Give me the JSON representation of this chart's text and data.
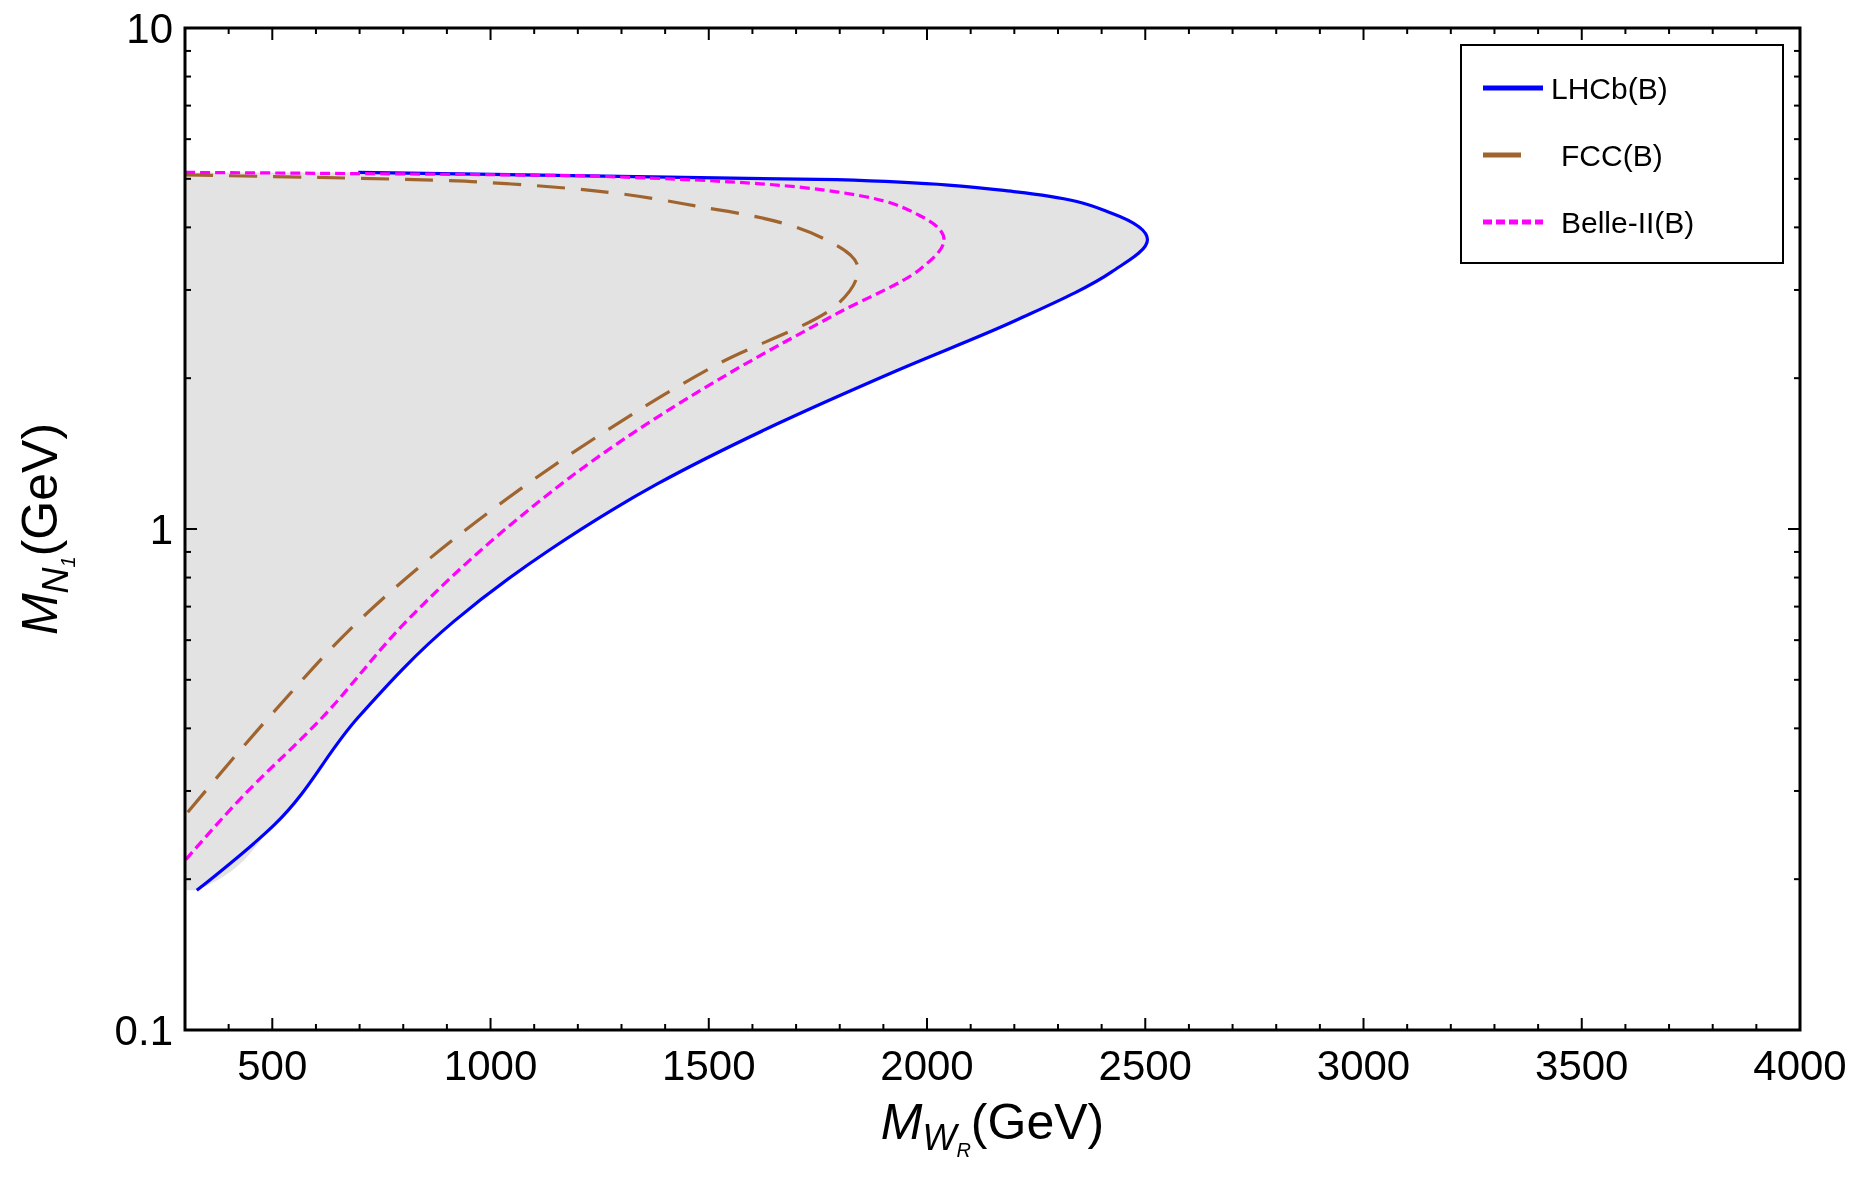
{
  "chart_data": {
    "type": "line",
    "xlabel": "M$_{W}$$_{R}$(GeV)",
    "ylabel": "M$_{N}$$_{1}$(GeV)",
    "log": "y",
    "xlim": [
      300,
      4000
    ],
    "ylim": [
      0.1,
      10
    ],
    "xticks": [
      {
        "value": 300,
        "label": null
      },
      {
        "value": 400,
        "label": null
      },
      500,
      {
        "value": 600,
        "label": null
      },
      {
        "value": 700,
        "label": null
      },
      {
        "value": 800,
        "label": null
      },
      {
        "value": 900,
        "label": null
      },
      1000,
      {
        "value": 1100,
        "label": null
      },
      {
        "value": 1200,
        "label": null
      },
      {
        "value": 1300,
        "label": null
      },
      {
        "value": 1400,
        "label": null
      },
      1500,
      {
        "value": 1600,
        "label": null
      },
      {
        "value": 1700,
        "label": null
      },
      {
        "value": 1800,
        "label": null
      },
      {
        "value": 1900,
        "label": null
      },
      2000,
      {
        "value": 2100,
        "label": null
      },
      {
        "value": 2200,
        "label": null
      },
      {
        "value": 2300,
        "label": null
      },
      {
        "value": 2400,
        "label": null
      },
      2500,
      {
        "value": 2600,
        "label": null
      },
      {
        "value": 2700,
        "label": null
      },
      {
        "value": 2800,
        "label": null
      },
      {
        "value": 2900,
        "label": null
      },
      3000,
      {
        "value": 3100,
        "label": null
      },
      {
        "value": 3200,
        "label": null
      },
      {
        "value": 3300,
        "label": null
      },
      {
        "value": 3400,
        "label": null
      },
      3500,
      {
        "value": 3600,
        "label": null
      },
      {
        "value": 3700,
        "label": null
      },
      {
        "value": 3800,
        "label": null
      },
      {
        "value": 3900,
        "label": null
      },
      4000
    ],
    "yticks": [
      0.1,
      {
        "value": 0.2,
        "label": null
      },
      {
        "value": 0.3,
        "label": null
      },
      {
        "value": 0.4,
        "label": null
      },
      {
        "value": 0.5,
        "label": null
      },
      {
        "value": 0.6,
        "label": null
      },
      {
        "value": 0.7,
        "label": null
      },
      {
        "value": 0.8,
        "label": null
      },
      {
        "value": 0.9,
        "label": null
      },
      1,
      {
        "value": 2,
        "label": null
      },
      {
        "value": 3,
        "label": null
      },
      {
        "value": 4,
        "label": null
      },
      {
        "value": 5,
        "label": null
      },
      {
        "value": 6,
        "label": null
      },
      {
        "value": 7,
        "label": null
      },
      {
        "value": 8,
        "label": null
      },
      {
        "value": 9,
        "label": null
      },
      10
    ],
    "grid": false,
    "legend": "top right",
    "marker": "none",
    "series": [
      {
        "name": "LHCb(B)",
        "type": "area",
        "color": "#0000ff",
        "line_style": "solid",
        "x": [
          697,
          1793,
          2204,
          2423,
          2505,
          2423,
          2204,
          1930,
          1656,
          1382,
          1135,
          916,
          697,
          505,
          327
        ],
        "values": [
          5.15,
          4.98,
          4.71,
          4.27,
          3.78,
          3.26,
          2.61,
          2.07,
          1.62,
          1.23,
          0.908,
          0.654,
          0.421,
          0.257,
          0.19
        ]
      },
      {
        "name": "FCC(B)",
        "color": "#a0642f",
        "line_style": "dashed",
        "x": [
          300,
          971,
          1519,
          1793,
          1842,
          1793,
          1519,
          1245,
          971,
          697,
          505,
          300
        ],
        "values": [
          5.09,
          4.93,
          4.34,
          3.68,
          3.3,
          2.8,
          2.13,
          1.53,
          1.04,
          0.654,
          0.433,
          0.268
        ]
      },
      {
        "name": "Belle-II(B)",
        "color": "#ff00ff",
        "line_style": "dotted",
        "x": [
          300,
          1245,
          1793,
          1984,
          2039,
          1984,
          1793,
          1519,
          1245,
          1026,
          807,
          615,
          423,
          300
        ],
        "values": [
          5.15,
          5.06,
          4.71,
          4.22,
          3.78,
          3.3,
          2.69,
          1.98,
          1.39,
          0.986,
          0.654,
          0.421,
          0.287,
          0.218
        ]
      }
    ]
  }
}
